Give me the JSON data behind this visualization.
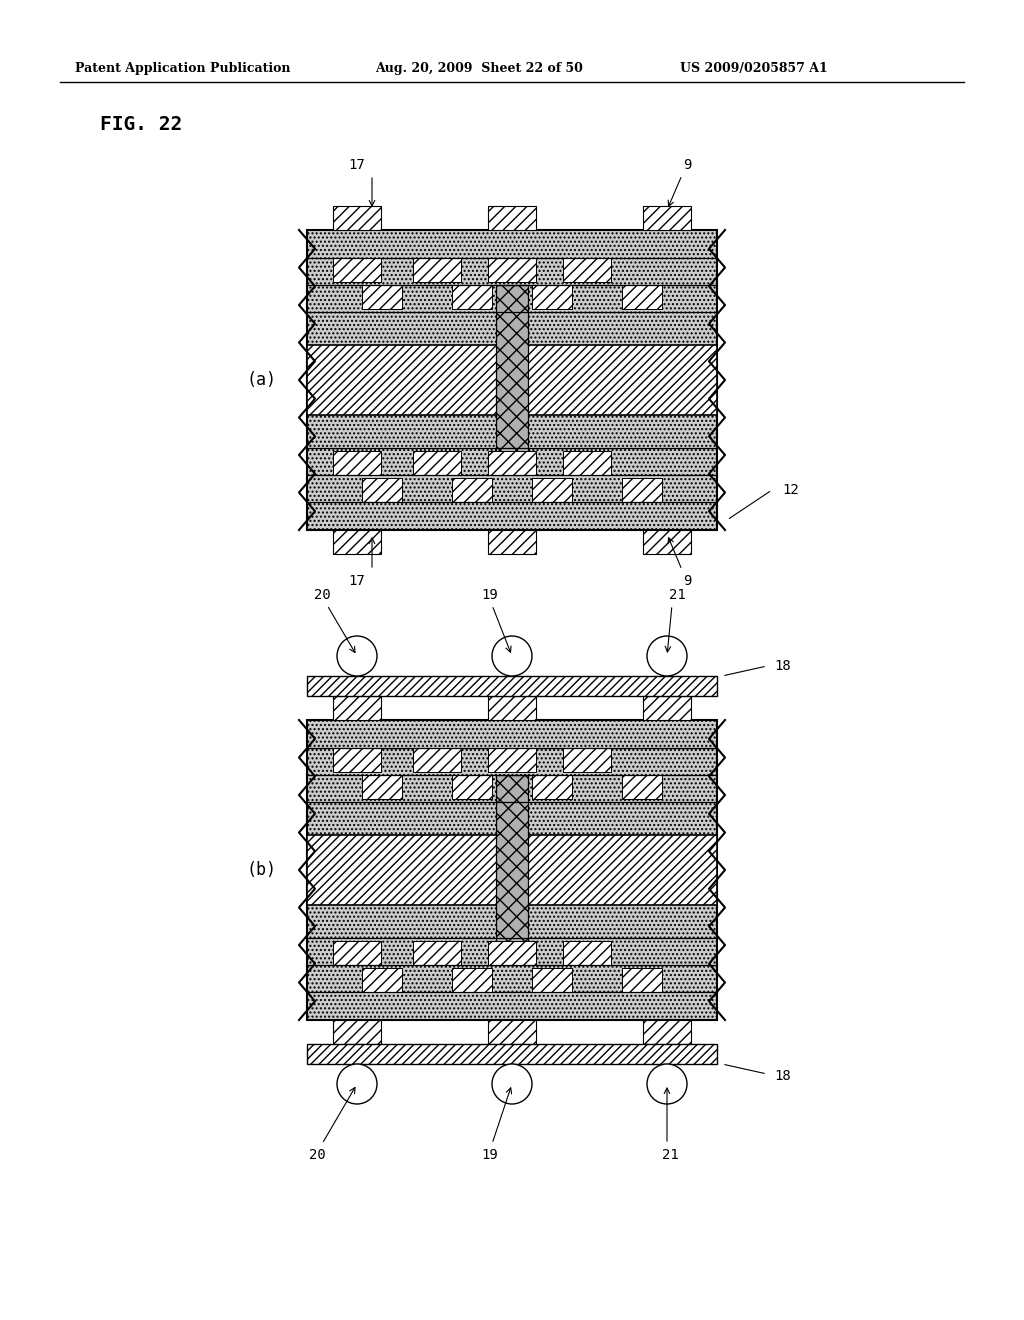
{
  "background_color": "#ffffff",
  "page_bg": "#e8e8e8",
  "header_text": "Patent Application Publication",
  "header_date": "Aug. 20, 2009  Sheet 22 of 50",
  "header_patent": "US 2009/0205857 A1",
  "fig_label": "FIG. 22",
  "sub_label_a": "(a)",
  "sub_label_b": "(b)",
  "label_17_top": "17",
  "label_9_top": "9",
  "label_12": "12",
  "label_17_bot": "17",
  "label_9_bot": "9",
  "label_20_top": "20",
  "label_19_top": "19",
  "label_21_top": "21",
  "label_18_top": "18",
  "label_20_bot": "20",
  "label_19_bot": "19",
  "label_21_bot": "21",
  "label_18_bot": "18"
}
